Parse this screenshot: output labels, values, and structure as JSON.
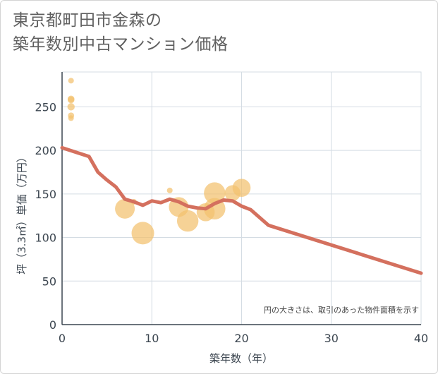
{
  "title": {
    "line1": "東京都町田市金森の",
    "line2": "築年数別中古マンション価格"
  },
  "chart_data": {
    "type": "scatter",
    "xlabel": "築年数（年）",
    "ylabel": "坪（3.3㎡）単価（万円）",
    "xlim": [
      0,
      40
    ],
    "ylim": [
      0,
      290
    ],
    "xticks": [
      0,
      10,
      20,
      30,
      40
    ],
    "yticks": [
      0,
      50,
      100,
      150,
      200,
      250
    ],
    "xtick_labels": [
      "0",
      "10",
      "20",
      "30",
      "40"
    ],
    "ytick_labels": [
      "0",
      "50",
      "100",
      "150",
      "200",
      "250"
    ],
    "grid": true,
    "annotation": "円の大きさは、取引のあった物件面積を示す",
    "scatter": [
      {
        "x": 1,
        "y": 280,
        "size": 1
      },
      {
        "x": 1,
        "y": 259,
        "size": 1.2
      },
      {
        "x": 1,
        "y": 258,
        "size": 1.2
      },
      {
        "x": 1,
        "y": 250,
        "size": 1.3
      },
      {
        "x": 1,
        "y": 240,
        "size": 1.1
      },
      {
        "x": 1,
        "y": 237,
        "size": 1
      },
      {
        "x": 7,
        "y": 133,
        "size": 3.5
      },
      {
        "x": 8,
        "y": 141,
        "size": 1
      },
      {
        "x": 9,
        "y": 105,
        "size": 4
      },
      {
        "x": 12,
        "y": 154,
        "size": 1
      },
      {
        "x": 13,
        "y": 135,
        "size": 3.5
      },
      {
        "x": 14,
        "y": 119,
        "size": 3.8
      },
      {
        "x": 16,
        "y": 129,
        "size": 3.2
      },
      {
        "x": 17,
        "y": 133,
        "size": 3.8
      },
      {
        "x": 17,
        "y": 151,
        "size": 3.8
      },
      {
        "x": 19,
        "y": 151,
        "size": 2.8
      },
      {
        "x": 20,
        "y": 157,
        "size": 3.2
      }
    ],
    "trend_line": {
      "x": [
        0,
        3,
        4,
        5,
        6,
        7,
        8,
        9,
        10,
        11,
        12,
        13,
        14,
        15,
        16,
        17,
        18,
        19,
        20,
        21,
        22,
        23,
        40
      ],
      "y": [
        203,
        193,
        175,
        166,
        158,
        144,
        141,
        137,
        142,
        140,
        144,
        141,
        136,
        134,
        133,
        139,
        143,
        142,
        136,
        132,
        123,
        114,
        59
      ]
    },
    "colors": {
      "bubble": "#f3c06e",
      "trend": "#d4705e",
      "grid": "#d4dce3",
      "axis": "#3c4650"
    }
  }
}
